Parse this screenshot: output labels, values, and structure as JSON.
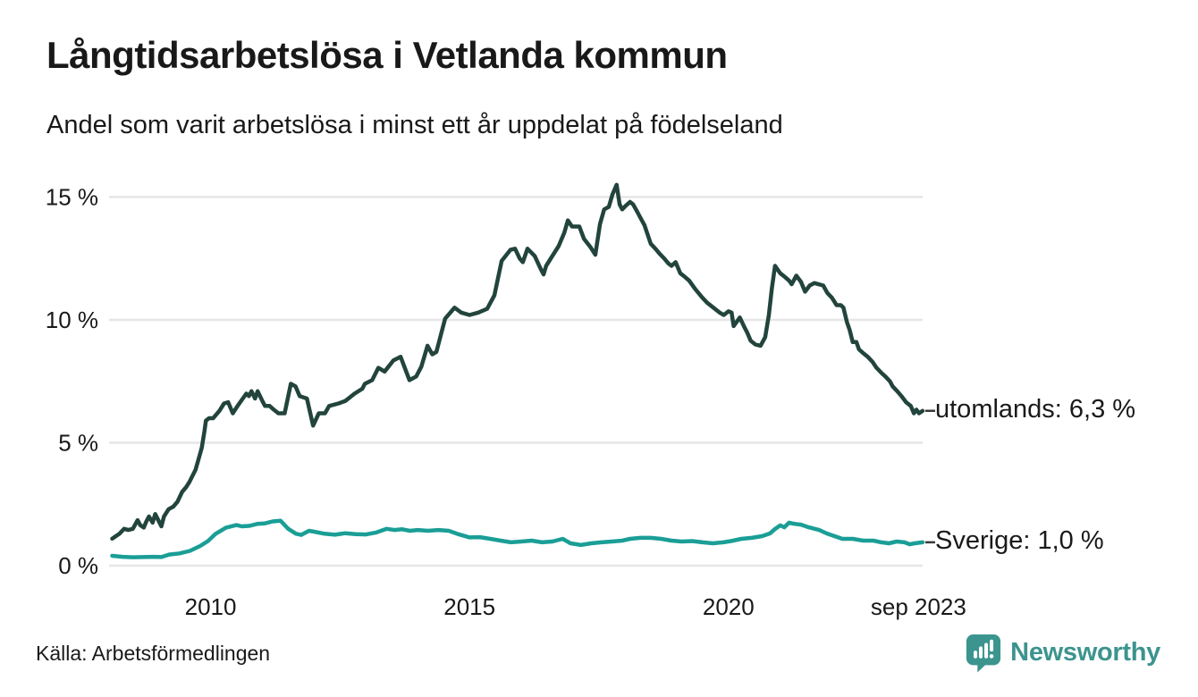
{
  "header": {
    "title": "Långtidsarbetslösa i Vetlanda kommun",
    "subtitle": "Andel som varit arbetslösa i minst ett år uppdelat på födelseland"
  },
  "footer": {
    "source": "Källa: Arbetsförmedlingen",
    "brand": "Newsworthy"
  },
  "colors": {
    "background": "#ffffff",
    "text": "#191919",
    "gridline": "#e6e6e9",
    "connector": "#3a3a3a",
    "utomlands_line": "#22443c",
    "sverige_line": "#1a9e96",
    "brand_teal": "#3c948e"
  },
  "chart_data": {
    "type": "line",
    "title": "Långtidsarbetslösa i Vetlanda kommun",
    "subtitle": "Andel som varit arbetslösa i minst ett år uppdelat på födelseland",
    "unit": "%",
    "grid": "horizontal",
    "legend_position": "right-end-labels",
    "x_domain": [
      2008.04,
      2023.75
    ],
    "y_domain": [
      0,
      16
    ],
    "y_ticks": [
      {
        "value": 0,
        "label": "0 %"
      },
      {
        "value": 5,
        "label": "5 %"
      },
      {
        "value": 10,
        "label": "10 %"
      },
      {
        "value": 15,
        "label": "15 %"
      }
    ],
    "x_ticks": [
      {
        "value": 2010,
        "label": "2010"
      },
      {
        "value": 2015,
        "label": "2015"
      },
      {
        "value": 2020,
        "label": "2020"
      },
      {
        "value": 2023.67,
        "label": "sep 2023"
      }
    ],
    "series": [
      {
        "name": "utomlands",
        "end_label": "utomlands: 6,3 %",
        "end_value_text": "6,3 %",
        "color": "#22443c",
        "points": [
          [
            2008.1,
            1.1
          ],
          [
            2008.24,
            1.3
          ],
          [
            2008.33,
            1.5
          ],
          [
            2008.41,
            1.45
          ],
          [
            2008.5,
            1.5
          ],
          [
            2008.59,
            1.85
          ],
          [
            2008.64,
            1.65
          ],
          [
            2008.71,
            1.55
          ],
          [
            2008.76,
            1.8
          ],
          [
            2008.81,
            2.0
          ],
          [
            2008.88,
            1.75
          ],
          [
            2008.93,
            2.1
          ],
          [
            2008.98,
            1.9
          ],
          [
            2009.05,
            1.6
          ],
          [
            2009.1,
            2.0
          ],
          [
            2009.19,
            2.3
          ],
          [
            2009.28,
            2.4
          ],
          [
            2009.36,
            2.6
          ],
          [
            2009.45,
            3.0
          ],
          [
            2009.53,
            3.2
          ],
          [
            2009.59,
            3.4
          ],
          [
            2009.71,
            3.9
          ],
          [
            2009.79,
            4.5
          ],
          [
            2009.83,
            4.8
          ],
          [
            2009.88,
            5.45
          ],
          [
            2009.91,
            5.9
          ],
          [
            2009.97,
            6.0
          ],
          [
            2010.05,
            6.0
          ],
          [
            2010.17,
            6.3
          ],
          [
            2010.26,
            6.6
          ],
          [
            2010.34,
            6.65
          ],
          [
            2010.43,
            6.2
          ],
          [
            2010.52,
            6.5
          ],
          [
            2010.69,
            7.0
          ],
          [
            2010.74,
            6.9
          ],
          [
            2010.79,
            7.1
          ],
          [
            2010.86,
            6.8
          ],
          [
            2010.91,
            7.1
          ],
          [
            2011.0,
            6.7
          ],
          [
            2011.05,
            6.5
          ],
          [
            2011.14,
            6.5
          ],
          [
            2011.22,
            6.35
          ],
          [
            2011.31,
            6.2
          ],
          [
            2011.43,
            6.2
          ],
          [
            2011.55,
            7.4
          ],
          [
            2011.64,
            7.3
          ],
          [
            2011.72,
            6.9
          ],
          [
            2011.86,
            6.8
          ],
          [
            2011.98,
            5.7
          ],
          [
            2012.09,
            6.2
          ],
          [
            2012.21,
            6.2
          ],
          [
            2012.29,
            6.5
          ],
          [
            2012.47,
            6.6
          ],
          [
            2012.6,
            6.7
          ],
          [
            2012.78,
            7.0
          ],
          [
            2012.93,
            7.2
          ],
          [
            2012.98,
            7.4
          ],
          [
            2013.12,
            7.55
          ],
          [
            2013.24,
            8.05
          ],
          [
            2013.36,
            7.9
          ],
          [
            2013.53,
            8.35
          ],
          [
            2013.67,
            8.5
          ],
          [
            2013.84,
            7.55
          ],
          [
            2013.97,
            7.7
          ],
          [
            2014.07,
            8.1
          ],
          [
            2014.19,
            8.95
          ],
          [
            2014.28,
            8.6
          ],
          [
            2014.36,
            8.7
          ],
          [
            2014.41,
            9.1
          ],
          [
            2014.53,
            10.05
          ],
          [
            2014.71,
            10.5
          ],
          [
            2014.84,
            10.3
          ],
          [
            2015.0,
            10.2
          ],
          [
            2015.17,
            10.3
          ],
          [
            2015.34,
            10.45
          ],
          [
            2015.48,
            11.0
          ],
          [
            2015.62,
            12.4
          ],
          [
            2015.79,
            12.85
          ],
          [
            2015.88,
            12.9
          ],
          [
            2015.97,
            12.5
          ],
          [
            2016.03,
            12.35
          ],
          [
            2016.12,
            12.9
          ],
          [
            2016.26,
            12.6
          ],
          [
            2016.38,
            12.05
          ],
          [
            2016.43,
            11.85
          ],
          [
            2016.48,
            12.2
          ],
          [
            2016.6,
            12.6
          ],
          [
            2016.72,
            13.0
          ],
          [
            2016.83,
            13.55
          ],
          [
            2016.9,
            14.05
          ],
          [
            2016.98,
            13.8
          ],
          [
            2017.12,
            13.8
          ],
          [
            2017.21,
            13.3
          ],
          [
            2017.34,
            12.95
          ],
          [
            2017.43,
            12.65
          ],
          [
            2017.52,
            13.9
          ],
          [
            2017.6,
            14.5
          ],
          [
            2017.69,
            14.6
          ],
          [
            2017.76,
            15.1
          ],
          [
            2017.84,
            15.5
          ],
          [
            2017.9,
            14.7
          ],
          [
            2017.95,
            14.5
          ],
          [
            2018.02,
            14.65
          ],
          [
            2018.1,
            14.8
          ],
          [
            2018.16,
            14.7
          ],
          [
            2018.24,
            14.4
          ],
          [
            2018.29,
            14.2
          ],
          [
            2018.38,
            13.85
          ],
          [
            2018.5,
            13.1
          ],
          [
            2018.59,
            12.9
          ],
          [
            2018.67,
            12.7
          ],
          [
            2018.76,
            12.5
          ],
          [
            2018.84,
            12.3
          ],
          [
            2018.9,
            12.2
          ],
          [
            2018.98,
            12.35
          ],
          [
            2019.07,
            11.9
          ],
          [
            2019.16,
            11.75
          ],
          [
            2019.24,
            11.6
          ],
          [
            2019.36,
            11.25
          ],
          [
            2019.5,
            10.9
          ],
          [
            2019.59,
            10.7
          ],
          [
            2019.71,
            10.5
          ],
          [
            2019.83,
            10.3
          ],
          [
            2019.91,
            10.2
          ],
          [
            2020.0,
            10.35
          ],
          [
            2020.06,
            10.3
          ],
          [
            2020.1,
            9.75
          ],
          [
            2020.22,
            10.1
          ],
          [
            2020.31,
            9.7
          ],
          [
            2020.36,
            9.5
          ],
          [
            2020.43,
            9.15
          ],
          [
            2020.52,
            9.0
          ],
          [
            2020.62,
            8.95
          ],
          [
            2020.71,
            9.3
          ],
          [
            2020.78,
            10.2
          ],
          [
            2020.84,
            11.3
          ],
          [
            2020.9,
            12.2
          ],
          [
            2021.0,
            11.9
          ],
          [
            2021.09,
            11.75
          ],
          [
            2021.17,
            11.6
          ],
          [
            2021.22,
            11.45
          ],
          [
            2021.31,
            11.8
          ],
          [
            2021.4,
            11.55
          ],
          [
            2021.48,
            11.15
          ],
          [
            2021.57,
            11.4
          ],
          [
            2021.66,
            11.5
          ],
          [
            2021.74,
            11.45
          ],
          [
            2021.83,
            11.4
          ],
          [
            2021.91,
            11.1
          ],
          [
            2022.0,
            10.9
          ],
          [
            2022.09,
            10.6
          ],
          [
            2022.17,
            10.6
          ],
          [
            2022.22,
            10.5
          ],
          [
            2022.29,
            9.9
          ],
          [
            2022.34,
            9.6
          ],
          [
            2022.4,
            9.1
          ],
          [
            2022.47,
            9.1
          ],
          [
            2022.52,
            8.8
          ],
          [
            2022.6,
            8.65
          ],
          [
            2022.69,
            8.5
          ],
          [
            2022.78,
            8.3
          ],
          [
            2022.86,
            8.05
          ],
          [
            2022.95,
            7.85
          ],
          [
            2023.03,
            7.7
          ],
          [
            2023.12,
            7.5
          ],
          [
            2023.17,
            7.3
          ],
          [
            2023.26,
            7.1
          ],
          [
            2023.34,
            6.9
          ],
          [
            2023.43,
            6.65
          ],
          [
            2023.52,
            6.5
          ],
          [
            2023.58,
            6.2
          ],
          [
            2023.63,
            6.35
          ],
          [
            2023.68,
            6.2
          ],
          [
            2023.75,
            6.3
          ]
        ]
      },
      {
        "name": "Sverige",
        "end_label": "Sverige: 1,0 %",
        "end_value_text": "1,0 %",
        "color": "#1a9e96",
        "points": [
          [
            2008.1,
            0.4
          ],
          [
            2008.3,
            0.36
          ],
          [
            2008.5,
            0.34
          ],
          [
            2008.7,
            0.35
          ],
          [
            2008.9,
            0.36
          ],
          [
            2009.05,
            0.35
          ],
          [
            2009.2,
            0.45
          ],
          [
            2009.4,
            0.5
          ],
          [
            2009.6,
            0.6
          ],
          [
            2009.8,
            0.8
          ],
          [
            2009.95,
            1.0
          ],
          [
            2010.1,
            1.3
          ],
          [
            2010.3,
            1.55
          ],
          [
            2010.5,
            1.65
          ],
          [
            2010.6,
            1.6
          ],
          [
            2010.75,
            1.62
          ],
          [
            2010.9,
            1.7
          ],
          [
            2011.05,
            1.72
          ],
          [
            2011.2,
            1.8
          ],
          [
            2011.35,
            1.83
          ],
          [
            2011.5,
            1.5
          ],
          [
            2011.65,
            1.3
          ],
          [
            2011.75,
            1.25
          ],
          [
            2011.9,
            1.42
          ],
          [
            2012.0,
            1.38
          ],
          [
            2012.2,
            1.3
          ],
          [
            2012.4,
            1.26
          ],
          [
            2012.6,
            1.32
          ],
          [
            2012.8,
            1.28
          ],
          [
            2013.0,
            1.27
          ],
          [
            2013.2,
            1.35
          ],
          [
            2013.4,
            1.5
          ],
          [
            2013.55,
            1.45
          ],
          [
            2013.7,
            1.48
          ],
          [
            2013.85,
            1.42
          ],
          [
            2014.0,
            1.45
          ],
          [
            2014.2,
            1.42
          ],
          [
            2014.4,
            1.45
          ],
          [
            2014.6,
            1.42
          ],
          [
            2014.8,
            1.27
          ],
          [
            2015.0,
            1.15
          ],
          [
            2015.2,
            1.16
          ],
          [
            2015.4,
            1.09
          ],
          [
            2015.6,
            1.02
          ],
          [
            2015.8,
            0.95
          ],
          [
            2016.0,
            0.98
          ],
          [
            2016.2,
            1.02
          ],
          [
            2016.4,
            0.95
          ],
          [
            2016.6,
            0.98
          ],
          [
            2016.8,
            1.09
          ],
          [
            2016.95,
            0.91
          ],
          [
            2017.15,
            0.84
          ],
          [
            2017.35,
            0.91
          ],
          [
            2017.55,
            0.95
          ],
          [
            2017.75,
            0.98
          ],
          [
            2017.95,
            1.02
          ],
          [
            2018.1,
            1.09
          ],
          [
            2018.3,
            1.13
          ],
          [
            2018.5,
            1.13
          ],
          [
            2018.7,
            1.09
          ],
          [
            2018.9,
            1.02
          ],
          [
            2019.1,
            0.98
          ],
          [
            2019.3,
            1.0
          ],
          [
            2019.5,
            0.95
          ],
          [
            2019.7,
            0.91
          ],
          [
            2019.9,
            0.95
          ],
          [
            2020.05,
            1.0
          ],
          [
            2020.25,
            1.09
          ],
          [
            2020.45,
            1.13
          ],
          [
            2020.65,
            1.2
          ],
          [
            2020.8,
            1.31
          ],
          [
            2020.9,
            1.49
          ],
          [
            2021.0,
            1.64
          ],
          [
            2021.08,
            1.56
          ],
          [
            2021.17,
            1.75
          ],
          [
            2021.25,
            1.71
          ],
          [
            2021.4,
            1.67
          ],
          [
            2021.55,
            1.56
          ],
          [
            2021.75,
            1.45
          ],
          [
            2021.9,
            1.31
          ],
          [
            2022.05,
            1.2
          ],
          [
            2022.2,
            1.09
          ],
          [
            2022.4,
            1.09
          ],
          [
            2022.6,
            1.02
          ],
          [
            2022.8,
            1.02
          ],
          [
            2022.95,
            0.95
          ],
          [
            2023.1,
            0.91
          ],
          [
            2023.25,
            0.98
          ],
          [
            2023.4,
            0.95
          ],
          [
            2023.5,
            0.87
          ],
          [
            2023.6,
            0.91
          ],
          [
            2023.68,
            0.93
          ],
          [
            2023.75,
            0.95
          ]
        ]
      }
    ]
  }
}
